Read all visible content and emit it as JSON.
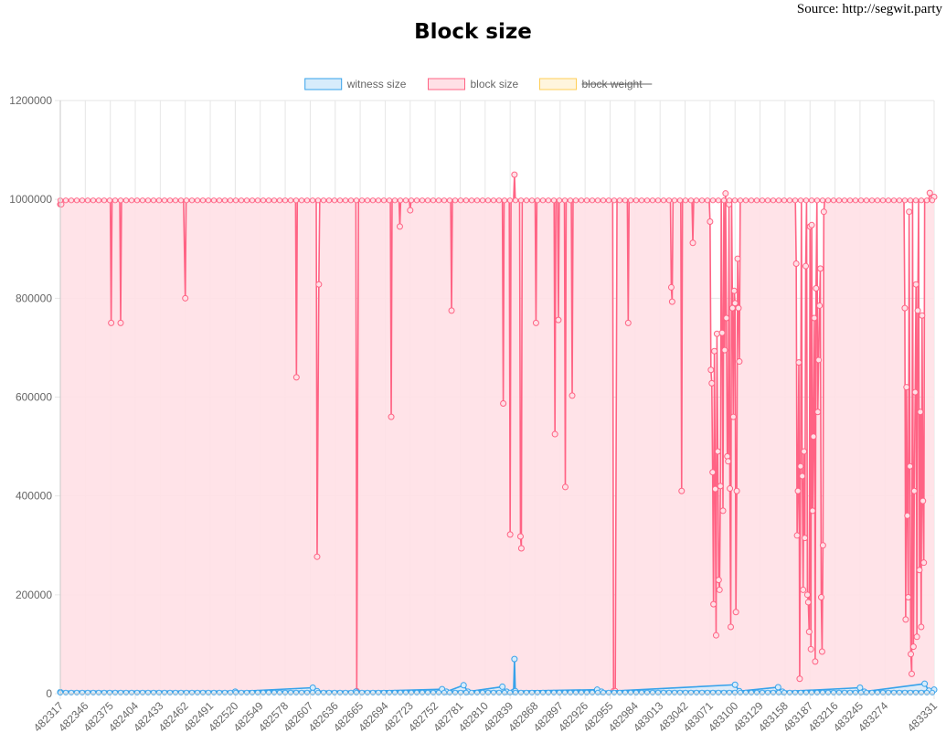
{
  "source_text": "Source:  http://segwit.party",
  "chart_data": {
    "type": "line",
    "title": "Block size",
    "xlabel": "",
    "ylabel": "",
    "ylim": [
      0,
      1200000
    ],
    "y_ticks": [
      "0",
      "200000",
      "400000",
      "600000",
      "800000",
      "1000000",
      "1200000"
    ],
    "x_range": [
      482317,
      483331
    ],
    "x_ticks": [
      "482317",
      "482346",
      "482375",
      "482404",
      "482433",
      "482462",
      "482491",
      "482520",
      "482549",
      "482578",
      "482607",
      "482636",
      "482665",
      "482694",
      "482723",
      "482752",
      "482781",
      "482810",
      "482839",
      "482868",
      "482897",
      "482926",
      "482955",
      "482984",
      "483013",
      "483042",
      "483071",
      "483100",
      "483129",
      "483158",
      "483187",
      "483216",
      "483245",
      "483274",
      "483331"
    ],
    "grid": true,
    "legend_position": "top",
    "legend": [
      {
        "label": "witness size",
        "color": "#36a2eb",
        "fill": "#d7ecfb",
        "hidden": false
      },
      {
        "label": "block size",
        "color": "#ff6384",
        "fill": "#ffe0e6",
        "hidden": false
      },
      {
        "label": "block weight",
        "color": "#ffce56",
        "fill": "#fff5dd",
        "hidden": true
      }
    ],
    "series": [
      {
        "name": "block size",
        "color": "#ff6384",
        "baseline": 998000,
        "points": [
          [
            482317,
            990000
          ],
          [
            482318,
            990000
          ],
          [
            482319,
            998000
          ],
          [
            482375,
            998000
          ],
          [
            482376,
            750000
          ],
          [
            482377,
            998000
          ],
          [
            482386,
            998000
          ],
          [
            482387,
            750000
          ],
          [
            482388,
            998000
          ],
          [
            482460,
            998000
          ],
          [
            482462,
            800000
          ],
          [
            482463,
            998000
          ],
          [
            482590,
            998000
          ],
          [
            482591,
            640000
          ],
          [
            482592,
            998000
          ],
          [
            482614,
            998000
          ],
          [
            482615,
            277000
          ],
          [
            482617,
            828000
          ],
          [
            482618,
            998000
          ],
          [
            482660,
            998000
          ],
          [
            482661,
            5000
          ],
          [
            482663,
            998000
          ],
          [
            482700,
            998000
          ],
          [
            482701,
            560000
          ],
          [
            482702,
            998000
          ],
          [
            482710,
            998000
          ],
          [
            482711,
            945000
          ],
          [
            482712,
            998000
          ],
          [
            482722,
            998000
          ],
          [
            482723,
            978000
          ],
          [
            482724,
            998000
          ],
          [
            482770,
            998000
          ],
          [
            482771,
            775000
          ],
          [
            482772,
            998000
          ],
          [
            482830,
            998000
          ],
          [
            482831,
            587000
          ],
          [
            482832,
            998000
          ],
          [
            482838,
            998000
          ],
          [
            482839,
            322000
          ],
          [
            482840,
            998000
          ],
          [
            482843,
            998000
          ],
          [
            482844,
            1050000
          ],
          [
            482845,
            998000
          ],
          [
            482850,
            998000
          ],
          [
            482851,
            318000
          ],
          [
            482852,
            294000
          ],
          [
            482853,
            998000
          ],
          [
            482868,
            998000
          ],
          [
            482869,
            750000
          ],
          [
            482870,
            998000
          ],
          [
            482890,
            998000
          ],
          [
            482891,
            525000
          ],
          [
            482892,
            998000
          ],
          [
            482894,
            998000
          ],
          [
            482895,
            756000
          ],
          [
            482896,
            998000
          ],
          [
            482902,
            998000
          ],
          [
            482903,
            418000
          ],
          [
            482904,
            998000
          ],
          [
            482910,
            998000
          ],
          [
            482911,
            603000
          ],
          [
            482912,
            998000
          ],
          [
            482958,
            998000
          ],
          [
            482959,
            5000
          ],
          [
            482961,
            5000
          ],
          [
            482963,
            998000
          ],
          [
            482975,
            998000
          ],
          [
            482976,
            750000
          ],
          [
            482977,
            998000
          ],
          [
            483025,
            998000
          ],
          [
            483026,
            822000
          ],
          [
            483027,
            793000
          ],
          [
            483028,
            998000
          ],
          [
            483037,
            998000
          ],
          [
            483038,
            410000
          ],
          [
            483039,
            998000
          ],
          [
            483050,
            998000
          ],
          [
            483051,
            912000
          ],
          [
            483052,
            998000
          ],
          [
            483070,
            998000
          ],
          [
            483071,
            955000
          ],
          [
            483072,
            655000
          ],
          [
            483073,
            628000
          ],
          [
            483074,
            448000
          ],
          [
            483075,
            181000
          ],
          [
            483076,
            693000
          ],
          [
            483077,
            414000
          ],
          [
            483078,
            118000
          ],
          [
            483079,
            728000
          ],
          [
            483080,
            490000
          ],
          [
            483081,
            230000
          ],
          [
            483082,
            210000
          ],
          [
            483083,
            420000
          ],
          [
            483084,
            998000
          ],
          [
            483085,
            730000
          ],
          [
            483086,
            370000
          ],
          [
            483087,
            1003000
          ],
          [
            483088,
            695000
          ],
          [
            483089,
            1012000
          ],
          [
            483090,
            760000
          ],
          [
            483091,
            480000
          ],
          [
            483092,
            470000
          ],
          [
            483093,
            990000
          ],
          [
            483094,
            415000
          ],
          [
            483095,
            135000
          ],
          [
            483096,
            1000000
          ],
          [
            483097,
            780000
          ],
          [
            483098,
            560000
          ],
          [
            483099,
            815000
          ],
          [
            483100,
            790000
          ],
          [
            483101,
            165000
          ],
          [
            483102,
            410000
          ],
          [
            483103,
            880000
          ],
          [
            483104,
            780000
          ],
          [
            483105,
            672000
          ],
          [
            483106,
            998000
          ],
          [
            483170,
            998000
          ],
          [
            483171,
            870000
          ],
          [
            483172,
            320000
          ],
          [
            483173,
            410000
          ],
          [
            483174,
            670000
          ],
          [
            483175,
            30000
          ],
          [
            483176,
            460000
          ],
          [
            483177,
            998000
          ],
          [
            483178,
            440000
          ],
          [
            483179,
            210000
          ],
          [
            483180,
            490000
          ],
          [
            483181,
            315000
          ],
          [
            483182,
            865000
          ],
          [
            483183,
            998000
          ],
          [
            483184,
            200000
          ],
          [
            483185,
            185000
          ],
          [
            483186,
            125000
          ],
          [
            483187,
            945000
          ],
          [
            483188,
            90000
          ],
          [
            483189,
            948000
          ],
          [
            483190,
            370000
          ],
          [
            483191,
            520000
          ],
          [
            483192,
            760000
          ],
          [
            483193,
            65000
          ],
          [
            483194,
            820000
          ],
          [
            483195,
            998000
          ],
          [
            483196,
            570000
          ],
          [
            483197,
            675000
          ],
          [
            483198,
            785000
          ],
          [
            483199,
            860000
          ],
          [
            483200,
            195000
          ],
          [
            483201,
            85000
          ],
          [
            483202,
            300000
          ],
          [
            483203,
            975000
          ],
          [
            483204,
            998000
          ],
          [
            483296,
            998000
          ],
          [
            483297,
            780000
          ],
          [
            483298,
            150000
          ],
          [
            483299,
            620000
          ],
          [
            483300,
            360000
          ],
          [
            483301,
            195000
          ],
          [
            483302,
            975000
          ],
          [
            483303,
            460000
          ],
          [
            483304,
            80000
          ],
          [
            483305,
            40000
          ],
          [
            483306,
            998000
          ],
          [
            483307,
            95000
          ],
          [
            483308,
            410000
          ],
          [
            483309,
            610000
          ],
          [
            483310,
            828000
          ],
          [
            483311,
            115000
          ],
          [
            483312,
            775000
          ],
          [
            483313,
            998000
          ],
          [
            483314,
            250000
          ],
          [
            483315,
            570000
          ],
          [
            483316,
            135000
          ],
          [
            483317,
            765000
          ],
          [
            483318,
            390000
          ],
          [
            483319,
            265000
          ],
          [
            483320,
            998000
          ],
          [
            483325,
            1000000
          ],
          [
            483326,
            1013000
          ],
          [
            483329,
            1000000
          ],
          [
            483331,
            1005000
          ]
        ]
      },
      {
        "name": "witness size",
        "color": "#36a2eb",
        "baseline": 4000,
        "points": [
          [
            482317,
            3000
          ],
          [
            482520,
            4000
          ],
          [
            482610,
            12000
          ],
          [
            482615,
            5000
          ],
          [
            482660,
            4000
          ],
          [
            482760,
            9000
          ],
          [
            482765,
            4000
          ],
          [
            482785,
            17000
          ],
          [
            482790,
            4000
          ],
          [
            482830,
            14000
          ],
          [
            482835,
            4000
          ],
          [
            482843,
            4000
          ],
          [
            482844,
            70000
          ],
          [
            482845,
            5000
          ],
          [
            482940,
            8000
          ],
          [
            482945,
            4000
          ],
          [
            483100,
            18000
          ],
          [
            483105,
            5000
          ],
          [
            483150,
            13000
          ],
          [
            483155,
            4000
          ],
          [
            483245,
            12000
          ],
          [
            483250,
            4000
          ],
          [
            483320,
            20000
          ],
          [
            483325,
            6000
          ],
          [
            483331,
            8000
          ]
        ]
      }
    ]
  }
}
